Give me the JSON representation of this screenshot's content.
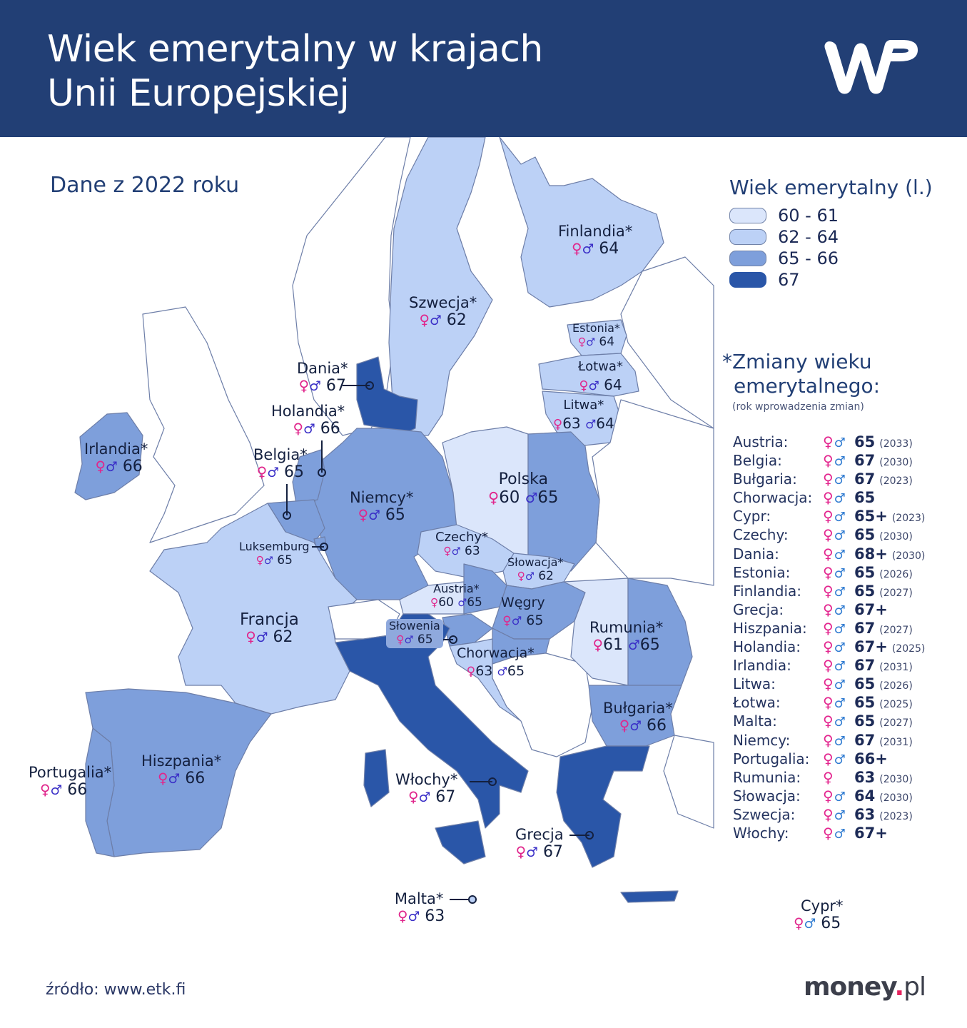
{
  "header": {
    "title_line1": "Wiek emerytalny w krajach",
    "title_line2": "Unii Europejskiej",
    "logo": "wp-logo"
  },
  "subtitle": "Dane z 2022 roku",
  "colors": {
    "header_bg": "#223f75",
    "bin_60_61": "#dbe6fb",
    "bin_62_64": "#bcd1f6",
    "bin_65_66": "#7e9fdb",
    "bin_67": "#2a56a8",
    "non_eu": "#ffffff",
    "border": "#6d7ea8",
    "female_symbol": "#e3268f",
    "male_symbol": "#2f7bd1"
  },
  "legend": {
    "title": "Wiek emerytalny (l.)",
    "items": [
      {
        "label": "60 - 61",
        "color": "#dbe6fb"
      },
      {
        "label": "62 - 64",
        "color": "#bcd1f6"
      },
      {
        "label": "65 - 66",
        "color": "#7e9fdb"
      },
      {
        "label": "67",
        "color": "#2a56a8"
      }
    ]
  },
  "symbols": {
    "female": "♀",
    "male": "♂",
    "female_male": "♀♂"
  },
  "map_labels": [
    {
      "id": "finlandia",
      "name": "Finlandia*",
      "value": "64"
    },
    {
      "id": "szwecja",
      "name": "Szwecja*",
      "value": "62"
    },
    {
      "id": "estonia",
      "name": "Estonia*",
      "value": "64"
    },
    {
      "id": "lotwa",
      "name": "Łotwa*",
      "value": "64"
    },
    {
      "id": "litwa",
      "name": "Litwa*",
      "female": "63",
      "male": "64"
    },
    {
      "id": "dania",
      "name": "Dania*",
      "value": "67"
    },
    {
      "id": "holandia",
      "name": "Holandia*",
      "value": "66"
    },
    {
      "id": "irlandia",
      "name": "Irlandia*",
      "value": "66"
    },
    {
      "id": "belgia",
      "name": "Belgia*",
      "value": "65"
    },
    {
      "id": "niemcy",
      "name": "Niemcy*",
      "value": "65"
    },
    {
      "id": "polska",
      "name": "Polska",
      "female": "60",
      "male": "65"
    },
    {
      "id": "luksemburg",
      "name": "Luksemburg",
      "value": "65"
    },
    {
      "id": "czechy",
      "name": "Czechy*",
      "value": "63"
    },
    {
      "id": "slowacja",
      "name": "Słowacja*",
      "value": "62"
    },
    {
      "id": "austria",
      "name": "Austria*",
      "female": "60",
      "male": "65"
    },
    {
      "id": "wegry",
      "name": "Węgry",
      "value": "65"
    },
    {
      "id": "francja",
      "name": "Francja",
      "value": "62"
    },
    {
      "id": "slowenia",
      "name": "Słowenia",
      "value": "65"
    },
    {
      "id": "chorwacja",
      "name": "Chorwacja*",
      "female": "63",
      "male": "65"
    },
    {
      "id": "rumunia",
      "name": "Rumunia*",
      "female": "61",
      "male": "65"
    },
    {
      "id": "bulgaria",
      "name": "Bułgaria*",
      "value": "66"
    },
    {
      "id": "portugalia",
      "name": "Portugalia*",
      "value": "66"
    },
    {
      "id": "hiszpania",
      "name": "Hiszpania*",
      "value": "66"
    },
    {
      "id": "wlochy",
      "name": "Włochy*",
      "value": "67"
    },
    {
      "id": "grecja",
      "name": "Grecja",
      "value": "67"
    },
    {
      "id": "malta",
      "name": "Malta*",
      "value": "63"
    },
    {
      "id": "cypr",
      "name": "Cypr*",
      "value": "65"
    }
  ],
  "changes": {
    "title_line1": "*Zmiany wieku",
    "title_line2": "emerytalnego:",
    "subtitle": "(rok wprowadzenia zmian)",
    "rows": [
      {
        "country": "Austria:",
        "symbols": "♀♂",
        "age": "65",
        "year": "(2033)"
      },
      {
        "country": "Belgia:",
        "symbols": "♀♂",
        "age": "67",
        "year": "(2030)"
      },
      {
        "country": "Bułgaria:",
        "symbols": "♀♂",
        "age": "67",
        "year": "(2023)"
      },
      {
        "country": "Chorwacja:",
        "symbols": "♀♂",
        "age": "65",
        "year": ""
      },
      {
        "country": "Cypr:",
        "symbols": "♀♂",
        "age": "65+",
        "year": "(2023)"
      },
      {
        "country": "Czechy:",
        "symbols": "♀♂",
        "age": "65",
        "year": "(2030)"
      },
      {
        "country": "Dania:",
        "symbols": "♀♂",
        "age": "68+",
        "year": "(2030)"
      },
      {
        "country": "Estonia:",
        "symbols": "♀♂",
        "age": "65",
        "year": "(2026)"
      },
      {
        "country": "Finlandia:",
        "symbols": "♀♂",
        "age": "65",
        "year": "(2027)"
      },
      {
        "country": "Grecja:",
        "symbols": "♀♂",
        "age": "67+",
        "year": ""
      },
      {
        "country": "Hiszpania:",
        "symbols": "♀♂",
        "age": "67",
        "year": "(2027)"
      },
      {
        "country": "Holandia:",
        "symbols": "♀♂",
        "age": "67+",
        "year": "(2025)"
      },
      {
        "country": "Irlandia:",
        "symbols": "♀♂",
        "age": "67",
        "year": "(2031)"
      },
      {
        "country": "Litwa:",
        "symbols": "♀♂",
        "age": "65",
        "year": "(2026)"
      },
      {
        "country": "Łotwa:",
        "symbols": "♀♂",
        "age": "65",
        "year": "(2025)"
      },
      {
        "country": "Malta:",
        "symbols": "♀♂",
        "age": "65",
        "year": "(2027)"
      },
      {
        "country": "Niemcy:",
        "symbols": "♀♂",
        "age": "67",
        "year": "(2031)"
      },
      {
        "country": "Portugalia:",
        "symbols": "♀♂",
        "age": "66+",
        "year": ""
      },
      {
        "country": "Rumunia:",
        "symbols": "♀",
        "age": "63",
        "year": "(2030)"
      },
      {
        "country": "Słowacja:",
        "symbols": "♀♂",
        "age": "64",
        "year": "(2030)"
      },
      {
        "country": "Szwecja:",
        "symbols": "♀♂",
        "age": "63",
        "year": "(2023)"
      },
      {
        "country": "Włochy:",
        "symbols": "♀♂",
        "age": "67+",
        "year": ""
      }
    ]
  },
  "footer": {
    "source": "źródło: www.etk.fi",
    "brand_main": "money",
    "brand_dot": ".",
    "brand_tld": "pl"
  }
}
